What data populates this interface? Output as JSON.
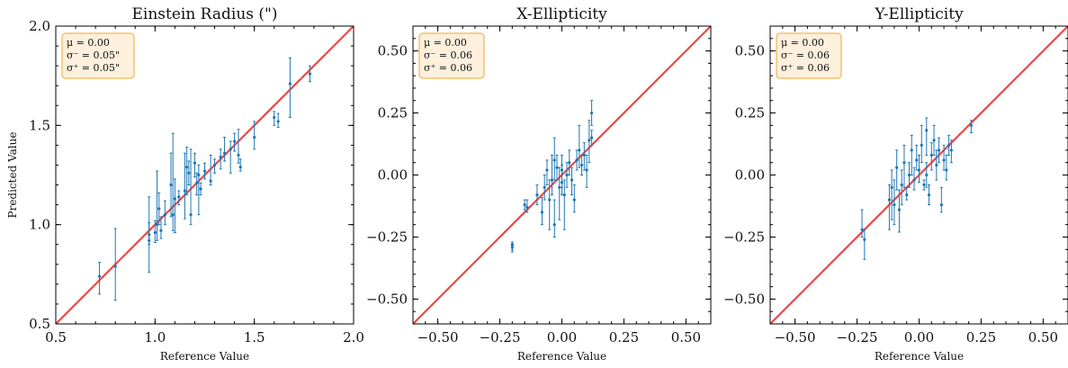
{
  "chart_data": [
    {
      "type": "scatter",
      "title": "Einstein Radius (\")",
      "xlabel": "Reference Value",
      "ylabel": "Predicted Value",
      "xlim": [
        0.5,
        2.0
      ],
      "ylim": [
        0.5,
        2.0
      ],
      "xticks": [
        "0.5",
        "1.0",
        "1.5",
        "2.0"
      ],
      "yticks": [
        "0.5",
        "1.0",
        "1.5",
        "2.0"
      ],
      "tick_values": [
        0.5,
        1.0,
        1.5,
        2.0
      ],
      "stats": [
        "μ = 0.00",
        "σ⁻ = 0.05\"",
        "σ⁺ = 0.05\""
      ],
      "legend_position": "top-left",
      "reference_line": "y = x",
      "colors": {
        "points": "#1f77b4",
        "reference_line": "#ef4444",
        "stat_box_fill": "#fdf0dc",
        "stat_box_border": "#f5c26b"
      },
      "series": [
        {
          "points": [
            [
              0.72,
              0.74,
              0.65,
              0.81
            ],
            [
              0.8,
              0.79,
              0.62,
              0.98
            ],
            [
              0.97,
              0.92,
              0.76,
              1.14
            ],
            [
              0.97,
              0.95,
              0.9,
              1.01
            ],
            [
              1.0,
              0.96,
              0.91,
              1.02
            ],
            [
              1.01,
              1.0,
              0.92,
              1.27
            ],
            [
              1.02,
              1.08,
              1.0,
              1.16
            ],
            [
              1.03,
              0.97,
              0.93,
              1.04
            ],
            [
              1.05,
              1.05,
              1.0,
              1.12
            ],
            [
              1.08,
              1.2,
              1.04,
              1.36
            ],
            [
              1.09,
              1.05,
              0.97,
              1.46
            ],
            [
              1.1,
              1.13,
              0.96,
              1.23
            ],
            [
              1.12,
              1.14,
              1.1,
              1.17
            ],
            [
              1.15,
              1.17,
              1.03,
              1.36
            ],
            [
              1.16,
              1.29,
              1.15,
              1.39
            ],
            [
              1.17,
              1.26,
              1.2,
              1.32
            ],
            [
              1.18,
              1.05,
              1.0,
              1.38
            ],
            [
              1.2,
              1.31,
              1.24,
              1.36
            ],
            [
              1.21,
              1.21,
              1.15,
              1.26
            ],
            [
              1.22,
              1.25,
              1.05,
              1.3
            ],
            [
              1.23,
              1.18,
              1.15,
              1.21
            ],
            [
              1.25,
              1.27,
              1.23,
              1.31
            ],
            [
              1.28,
              1.22,
              1.2,
              1.35
            ],
            [
              1.3,
              1.3,
              1.26,
              1.33
            ],
            [
              1.33,
              1.34,
              1.28,
              1.38
            ],
            [
              1.35,
              1.36,
              1.32,
              1.44
            ],
            [
              1.38,
              1.38,
              1.26,
              1.42
            ],
            [
              1.4,
              1.42,
              1.37,
              1.46
            ],
            [
              1.42,
              1.35,
              1.31,
              1.48
            ],
            [
              1.43,
              1.29,
              1.27,
              1.33
            ],
            [
              1.5,
              1.44,
              1.38,
              1.52
            ],
            [
              1.6,
              1.54,
              1.5,
              1.57
            ],
            [
              1.62,
              1.52,
              1.49,
              1.56
            ],
            [
              1.68,
              1.71,
              1.54,
              1.84
            ],
            [
              1.78,
              1.76,
              1.72,
              1.8
            ]
          ]
        }
      ]
    },
    {
      "type": "scatter",
      "title": "X-Ellipticity",
      "xlabel": "Reference Value",
      "ylabel": "",
      "xlim": [
        -0.6,
        0.6
      ],
      "ylim": [
        -0.6,
        0.6
      ],
      "xticks": [
        "−0.50",
        "−0.25",
        "0.00",
        "0.25",
        "0.50"
      ],
      "yticks": [
        "−0.50",
        "−0.25",
        "0.00",
        "0.25",
        "0.50"
      ],
      "tick_values": [
        -0.5,
        -0.25,
        0.0,
        0.25,
        0.5
      ],
      "stats": [
        "μ = 0.00",
        "σ⁻ = 0.06",
        "σ⁺ = 0.06"
      ],
      "legend_position": "top-left",
      "reference_line": "y = x",
      "colors": {
        "points": "#1f77b4",
        "reference_line": "#ef4444",
        "stat_box_fill": "#fdf0dc",
        "stat_box_border": "#f5c26b"
      },
      "series": [
        {
          "points": [
            [
              -0.2,
              -0.28,
              -0.3,
              -0.27
            ],
            [
              -0.2,
              -0.29,
              -0.31,
              -0.28
            ],
            [
              -0.15,
              -0.12,
              -0.14,
              -0.1
            ],
            [
              -0.14,
              -0.13,
              -0.15,
              -0.1
            ],
            [
              -0.1,
              -0.08,
              -0.12,
              -0.04
            ],
            [
              -0.08,
              -0.15,
              -0.2,
              -0.09
            ],
            [
              -0.07,
              -0.05,
              -0.1,
              0.0
            ],
            [
              -0.06,
              0.02,
              -0.04,
              0.06
            ],
            [
              -0.05,
              -0.1,
              -0.22,
              -0.02
            ],
            [
              -0.04,
              -0.02,
              -0.08,
              0.08
            ],
            [
              -0.03,
              0.06,
              -0.02,
              0.15
            ],
            [
              -0.03,
              -0.2,
              -0.25,
              -0.1
            ],
            [
              -0.02,
              0.03,
              -0.02,
              0.08
            ],
            [
              -0.01,
              -0.05,
              -0.18,
              0.03
            ],
            [
              0.0,
              -0.03,
              -0.08,
              0.04
            ],
            [
              0.0,
              0.02,
              -0.05,
              0.08
            ],
            [
              0.01,
              -0.08,
              -0.22,
              -0.02
            ],
            [
              0.02,
              0.0,
              -0.05,
              0.05
            ],
            [
              0.03,
              0.05,
              0.0,
              0.1
            ],
            [
              0.04,
              -0.02,
              -0.08,
              0.03
            ],
            [
              0.05,
              -0.1,
              -0.15,
              -0.04
            ],
            [
              0.06,
              0.06,
              0.02,
              0.1
            ],
            [
              0.07,
              0.1,
              0.03,
              0.2
            ],
            [
              0.08,
              0.04,
              0.0,
              0.08
            ],
            [
              0.09,
              0.08,
              0.02,
              0.13
            ],
            [
              0.1,
              0.02,
              -0.05,
              0.08
            ],
            [
              0.11,
              0.14,
              0.05,
              0.22
            ],
            [
              0.12,
              0.15,
              0.12,
              0.18
            ],
            [
              0.12,
              0.25,
              0.2,
              0.3
            ]
          ]
        }
      ]
    },
    {
      "type": "scatter",
      "title": "Y-Ellipticity",
      "xlabel": "Reference Value",
      "ylabel": "",
      "xlim": [
        -0.6,
        0.6
      ],
      "ylim": [
        -0.6,
        0.6
      ],
      "xticks": [
        "−0.50",
        "−0.25",
        "0.00",
        "0.25",
        "0.50"
      ],
      "yticks": [
        "−0.50",
        "−0.25",
        "0.00",
        "0.25",
        "0.50"
      ],
      "tick_values": [
        -0.5,
        -0.25,
        0.0,
        0.25,
        0.5
      ],
      "stats": [
        "μ = 0.00",
        "σ⁻ = 0.06",
        "σ⁺ = 0.06"
      ],
      "legend_position": "top-left",
      "reference_line": "y = x",
      "colors": {
        "points": "#1f77b4",
        "reference_line": "#ef4444",
        "stat_box_fill": "#fdf0dc",
        "stat_box_border": "#f5c26b"
      },
      "series": [
        {
          "points": [
            [
              -0.23,
              -0.22,
              -0.25,
              -0.14
            ],
            [
              -0.22,
              -0.26,
              -0.34,
              -0.22
            ],
            [
              -0.12,
              -0.1,
              -0.22,
              -0.04
            ],
            [
              -0.11,
              -0.05,
              -0.18,
              0.02
            ],
            [
              -0.1,
              -0.12,
              -0.2,
              -0.02
            ],
            [
              -0.09,
              0.03,
              -0.06,
              0.1
            ],
            [
              -0.08,
              -0.14,
              -0.23,
              -0.06
            ],
            [
              -0.07,
              -0.04,
              -0.12,
              0.02
            ],
            [
              -0.06,
              0.05,
              -0.05,
              0.12
            ],
            [
              -0.05,
              -0.08,
              -0.1,
              -0.05
            ],
            [
              -0.04,
              0.0,
              -0.05,
              0.05
            ],
            [
              -0.03,
              0.1,
              0.0,
              0.16
            ],
            [
              -0.02,
              -0.02,
              -0.06,
              0.03
            ],
            [
              -0.01,
              0.06,
              0.02,
              0.12
            ],
            [
              0.0,
              0.02,
              -0.03,
              0.08
            ],
            [
              0.01,
              0.12,
              0.05,
              0.2
            ],
            [
              0.02,
              -0.04,
              -0.06,
              -0.02
            ],
            [
              0.03,
              0.0,
              -0.05,
              0.05
            ],
            [
              0.03,
              0.18,
              0.08,
              0.23
            ],
            [
              0.04,
              -0.08,
              -0.12,
              -0.04
            ],
            [
              0.05,
              0.08,
              0.02,
              0.13
            ],
            [
              0.06,
              0.14,
              0.08,
              0.2
            ],
            [
              0.07,
              0.04,
              -0.02,
              0.1
            ],
            [
              0.08,
              0.1,
              0.05,
              0.15
            ],
            [
              0.09,
              -0.12,
              -0.15,
              -0.05
            ],
            [
              0.1,
              0.06,
              0.02,
              0.12
            ],
            [
              0.11,
              0.02,
              -0.02,
              0.08
            ],
            [
              0.12,
              0.12,
              0.08,
              0.16
            ],
            [
              0.13,
              0.1,
              0.05,
              0.14
            ],
            [
              0.21,
              0.2,
              0.17,
              0.22
            ]
          ]
        }
      ]
    }
  ]
}
